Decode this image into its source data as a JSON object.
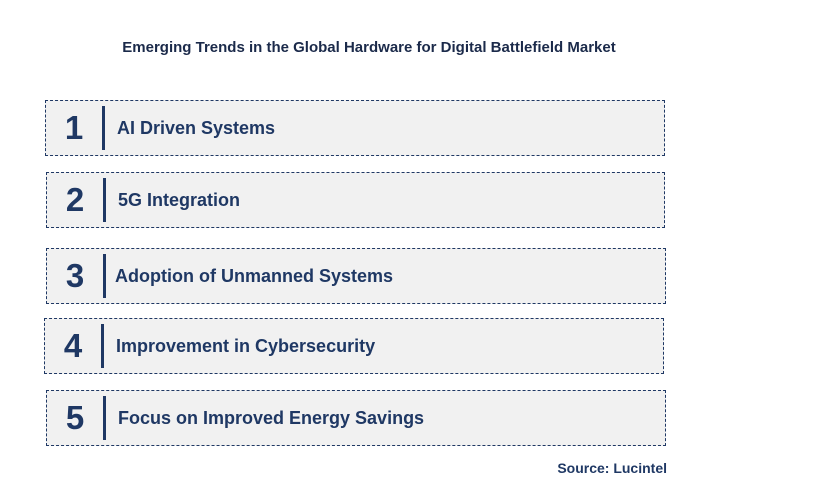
{
  "title": "Emerging Trends in the Global Hardware for Digital Battlefield Market",
  "trends": [
    {
      "number": "1",
      "label": "AI Driven Systems"
    },
    {
      "number": "2",
      "label": "5G Integration"
    },
    {
      "number": "3",
      "label": "Adoption of Unmanned Systems"
    },
    {
      "number": "4",
      "label": "Improvement in Cybersecurity"
    },
    {
      "number": "5",
      "label": "Focus on Improved Energy Savings"
    }
  ],
  "source": "Source: Lucintel"
}
